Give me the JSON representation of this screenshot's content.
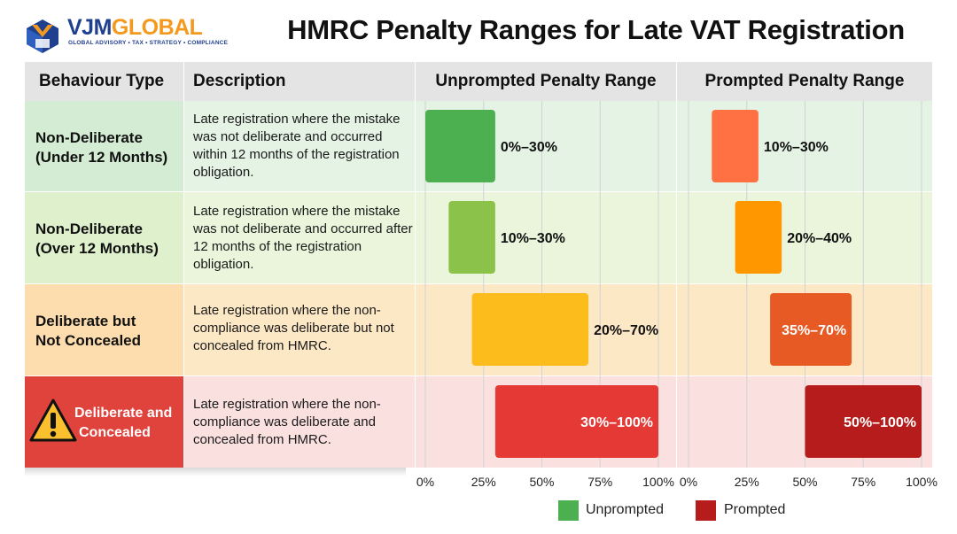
{
  "logo": {
    "text_part1": "VJM",
    "text_part2": "GLOBAL",
    "tagline": "GLOBAL ADVISORY • TAX • STRATEGY • COMPLIANCE"
  },
  "title": "HMRC Penalty Ranges for Late VAT Registration",
  "headers": {
    "behaviour": "Behaviour Type",
    "description": "Description",
    "unprompted": "Unprompted Penalty Range",
    "prompted": "Prompted Penalty Range"
  },
  "rows": [
    {
      "label_lines": [
        "Non-Deliberate",
        "(Under 12 Months)"
      ],
      "description": "Late registration where the mistake was not deliberate and occurred within 12 months of the registration obligation."
    },
    {
      "label_lines": [
        "Non-Deliberate",
        "(Over 12 Months)"
      ],
      "description": "Late registration where the mistake was not deliberate and occurred after 12 months of the registration obligation."
    },
    {
      "label_lines": [
        "Deliberate but",
        "Not Concealed"
      ],
      "description": "Late registration where the non-compliance was deliberate but not concealed from HMRC."
    },
    {
      "label_lines": [
        "Deliberate and",
        "Concealed"
      ],
      "description": "Late registration where the non-compliance was deliberate and concealed from HMRC."
    }
  ],
  "legend": {
    "unprompted": "Unprompted",
    "prompted": "Prompted"
  },
  "colors": {
    "row_bg": [
      "#e4f3e4",
      "#eaf5dc",
      "#fde8c6",
      "#fbe0e0"
    ],
    "label_bg": [
      "#d3ecd3",
      "#def0cc",
      "#fddcae",
      "#e0423c"
    ],
    "label_text": [
      "#111111",
      "#111111",
      "#111111",
      "#ffffff"
    ],
    "legend_unprompted": "#4caf50",
    "legend_prompted": "#b71c1c"
  },
  "chart_data": {
    "type": "bar",
    "subtype": "floating-range",
    "categories": [
      "Non-Deliberate (Under 12 Months)",
      "Non-Deliberate (Over 12 Months)",
      "Deliberate but Not Concealed",
      "Deliberate and Concealed"
    ],
    "xlim": [
      0,
      100
    ],
    "xticks": [
      "0%",
      "25%",
      "50%",
      "75%",
      "100%"
    ],
    "grid": true,
    "legend_position": "bottom",
    "series": [
      {
        "name": "Unprompted",
        "ranges": [
          [
            0,
            30
          ],
          [
            10,
            30
          ],
          [
            20,
            70
          ],
          [
            30,
            100
          ]
        ],
        "labels": [
          "0%–30%",
          "10%–30%",
          "20%–70%",
          "30%–100%"
        ],
        "colors": [
          "#4caf50",
          "#8bc34a",
          "#fbbc1c",
          "#e53935"
        ],
        "label_colors": [
          "#111111",
          "#111111",
          "#111111",
          "#ffffff"
        ]
      },
      {
        "name": "Prompted",
        "ranges": [
          [
            10,
            30
          ],
          [
            20,
            40
          ],
          [
            35,
            70
          ],
          [
            50,
            100
          ]
        ],
        "labels": [
          "10%–30%",
          "20%–40%",
          "35%–70%",
          "50%–100%"
        ],
        "colors": [
          "#ff7043",
          "#ff9800",
          "#e85a24",
          "#b71c1c"
        ],
        "label_colors": [
          "#111111",
          "#111111",
          "#ffffff",
          "#ffffff"
        ]
      }
    ]
  }
}
